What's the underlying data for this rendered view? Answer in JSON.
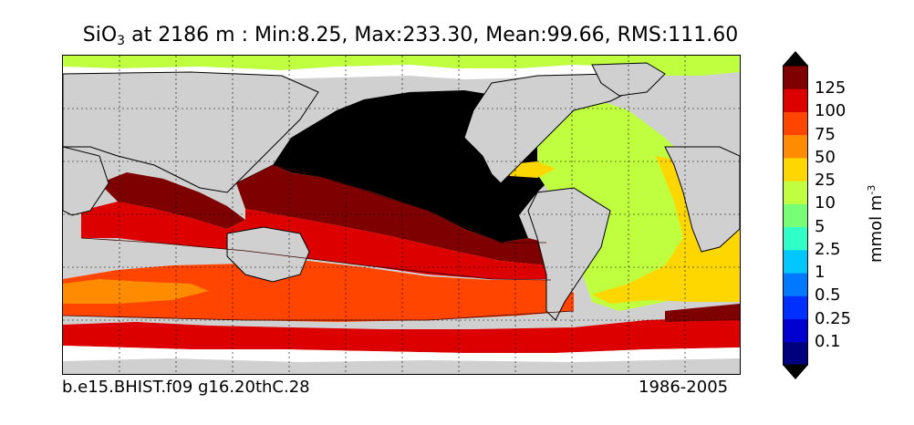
{
  "title": {
    "variable": "SiO",
    "subscript": "3",
    "rest": " at 2186 m : Min:8.25, Max:233.30, Mean:99.66, RMS:111.60"
  },
  "footer": {
    "case": "b.e15.BHIST.f09 g16.20thC.28",
    "period": "1986-2005"
  },
  "colorbar": {
    "unit_base": "mmol m",
    "unit_exp": "-3",
    "tick_labels": [
      "0.1",
      "0.25",
      "0.5",
      "1",
      "2.5",
      "5",
      "10",
      "25",
      "50",
      "75",
      "100",
      "125"
    ],
    "colors": [
      "#00007f",
      "#0000d0",
      "#0030ff",
      "#0078ff",
      "#00c8ff",
      "#30ffc8",
      "#78ff78",
      "#bfff3f",
      "#ffd700",
      "#ff8c00",
      "#ff4500",
      "#dc0000",
      "#7f0000"
    ],
    "extend": "both"
  },
  "map": {
    "land_color": "#d0d0d0",
    "missing_color": "#ffffff",
    "gridlines": "dotted"
  }
}
